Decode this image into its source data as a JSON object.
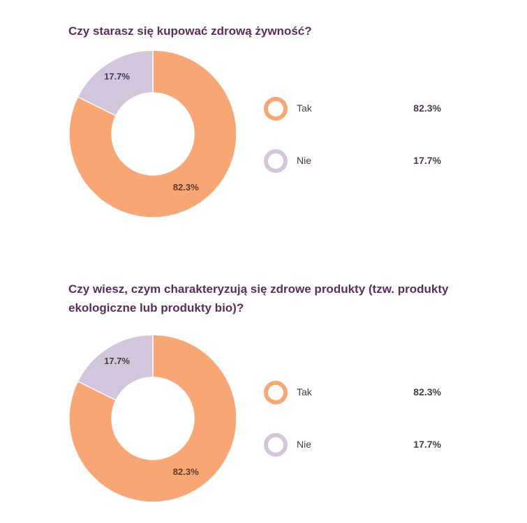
{
  "chart_data": [
    {
      "type": "pie",
      "title": "Czy starasz się kupować zdrową żywność?",
      "categories": [
        "Tak",
        "Nie"
      ],
      "values": [
        82.3,
        17.7
      ],
      "labels": [
        "82.3%",
        "17.7%"
      ],
      "colors": [
        "#f8a774",
        "#d3c6dc"
      ],
      "legend": "right"
    },
    {
      "type": "pie",
      "title": "Czy wiesz, czym charakteryzują się zdrowe produkty (tzw. produkty ekologiczne lub produkty bio)?",
      "categories": [
        "Tak",
        "Nie"
      ],
      "values": [
        82.3,
        17.7
      ],
      "labels": [
        "82.3%",
        "17.7%"
      ],
      "colors": [
        "#f8a774",
        "#d3c6dc"
      ],
      "legend": "right"
    }
  ]
}
